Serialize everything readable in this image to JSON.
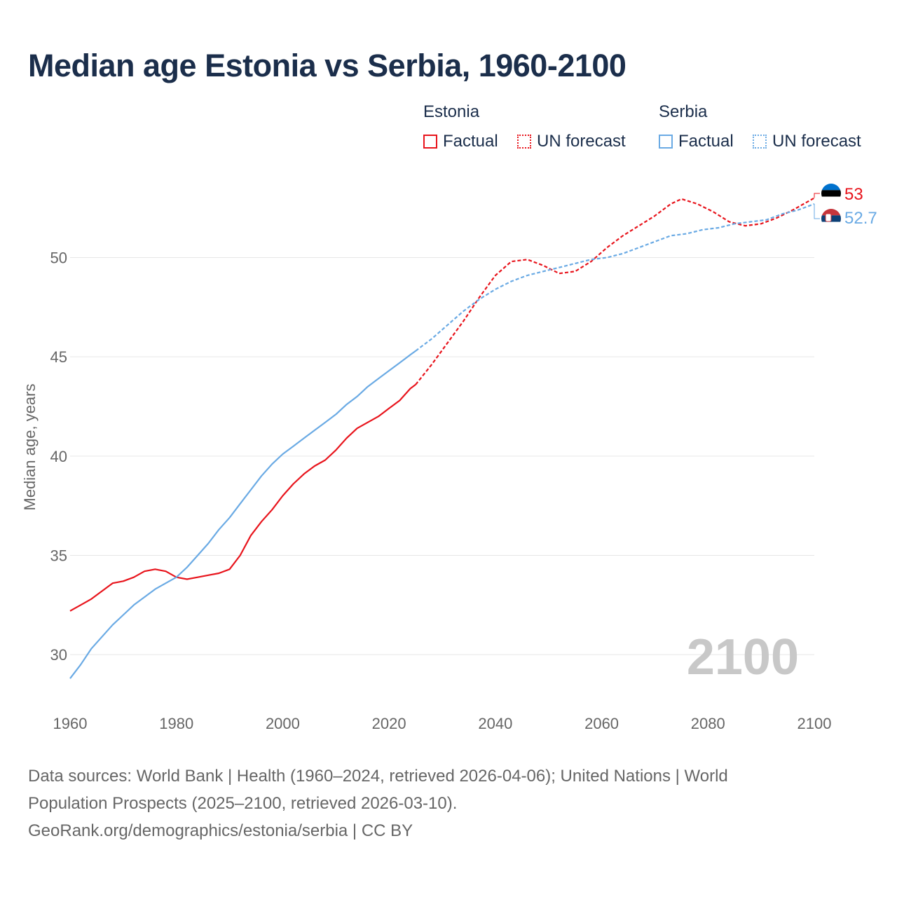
{
  "title": "Median age Estonia vs Serbia, 1960-2100",
  "legend": {
    "groups": [
      {
        "name": "Estonia",
        "factual_label": "Factual",
        "forecast_label": "UN forecast",
        "color": "#e8141c"
      },
      {
        "name": "Serbia",
        "factual_label": "Factual",
        "forecast_label": "UN forecast",
        "color": "#6aaae4"
      }
    ]
  },
  "chart_data": {
    "type": "line",
    "title": "Median age Estonia vs Serbia, 1960-2100",
    "xlabel": "",
    "ylabel": "Median age, years",
    "xlim": [
      1960,
      2100
    ],
    "ylim": [
      27.5,
      54.5
    ],
    "x_ticks": [
      1960,
      1980,
      2000,
      2020,
      2040,
      2060,
      2080,
      2100
    ],
    "y_ticks": [
      30,
      35,
      40,
      45,
      50
    ],
    "year_watermark": "2100",
    "forecast_start": 2025,
    "series": [
      {
        "name": "Estonia",
        "color": "#e8141c",
        "end_label": "53",
        "points": [
          [
            1960,
            32.2
          ],
          [
            1962,
            32.5
          ],
          [
            1964,
            32.8
          ],
          [
            1966,
            33.2
          ],
          [
            1968,
            33.6
          ],
          [
            1970,
            33.7
          ],
          [
            1972,
            33.9
          ],
          [
            1974,
            34.2
          ],
          [
            1976,
            34.3
          ],
          [
            1978,
            34.2
          ],
          [
            1980,
            33.9
          ],
          [
            1982,
            33.8
          ],
          [
            1984,
            33.9
          ],
          [
            1986,
            34.0
          ],
          [
            1988,
            34.1
          ],
          [
            1990,
            34.3
          ],
          [
            1992,
            35.0
          ],
          [
            1994,
            36.0
          ],
          [
            1996,
            36.7
          ],
          [
            1998,
            37.3
          ],
          [
            2000,
            38.0
          ],
          [
            2002,
            38.6
          ],
          [
            2004,
            39.1
          ],
          [
            2006,
            39.5
          ],
          [
            2008,
            39.8
          ],
          [
            2010,
            40.3
          ],
          [
            2012,
            40.9
          ],
          [
            2014,
            41.4
          ],
          [
            2016,
            41.7
          ],
          [
            2018,
            42.0
          ],
          [
            2020,
            42.4
          ],
          [
            2022,
            42.8
          ],
          [
            2024,
            43.4
          ],
          [
            2025,
            43.6
          ],
          [
            2028,
            44.6
          ],
          [
            2031,
            45.7
          ],
          [
            2034,
            46.8
          ],
          [
            2037,
            48.0
          ],
          [
            2040,
            49.1
          ],
          [
            2043,
            49.8
          ],
          [
            2046,
            49.9
          ],
          [
            2049,
            49.6
          ],
          [
            2052,
            49.2
          ],
          [
            2055,
            49.3
          ],
          [
            2058,
            49.8
          ],
          [
            2061,
            50.5
          ],
          [
            2064,
            51.1
          ],
          [
            2067,
            51.6
          ],
          [
            2070,
            52.1
          ],
          [
            2073,
            52.7
          ],
          [
            2075,
            52.95
          ],
          [
            2078,
            52.7
          ],
          [
            2081,
            52.3
          ],
          [
            2084,
            51.8
          ],
          [
            2087,
            51.6
          ],
          [
            2090,
            51.7
          ],
          [
            2093,
            52.0
          ],
          [
            2096,
            52.4
          ],
          [
            2100,
            53.0
          ]
        ]
      },
      {
        "name": "Serbia",
        "color": "#6aaae4",
        "end_label": "52.7",
        "points": [
          [
            1960,
            28.8
          ],
          [
            1962,
            29.5
          ],
          [
            1964,
            30.3
          ],
          [
            1966,
            30.9
          ],
          [
            1968,
            31.5
          ],
          [
            1970,
            32.0
          ],
          [
            1972,
            32.5
          ],
          [
            1974,
            32.9
          ],
          [
            1976,
            33.3
          ],
          [
            1978,
            33.6
          ],
          [
            1980,
            33.9
          ],
          [
            1982,
            34.4
          ],
          [
            1984,
            35.0
          ],
          [
            1986,
            35.6
          ],
          [
            1988,
            36.3
          ],
          [
            1990,
            36.9
          ],
          [
            1992,
            37.6
          ],
          [
            1994,
            38.3
          ],
          [
            1996,
            39.0
          ],
          [
            1998,
            39.6
          ],
          [
            2000,
            40.1
          ],
          [
            2002,
            40.5
          ],
          [
            2004,
            40.9
          ],
          [
            2006,
            41.3
          ],
          [
            2008,
            41.7
          ],
          [
            2010,
            42.1
          ],
          [
            2012,
            42.6
          ],
          [
            2014,
            43.0
          ],
          [
            2016,
            43.5
          ],
          [
            2018,
            43.9
          ],
          [
            2020,
            44.3
          ],
          [
            2022,
            44.7
          ],
          [
            2024,
            45.1
          ],
          [
            2025,
            45.3
          ],
          [
            2028,
            45.9
          ],
          [
            2031,
            46.6
          ],
          [
            2034,
            47.3
          ],
          [
            2037,
            47.9
          ],
          [
            2040,
            48.4
          ],
          [
            2043,
            48.8
          ],
          [
            2046,
            49.1
          ],
          [
            2049,
            49.3
          ],
          [
            2052,
            49.5
          ],
          [
            2055,
            49.7
          ],
          [
            2058,
            49.9
          ],
          [
            2061,
            50.0
          ],
          [
            2064,
            50.2
          ],
          [
            2067,
            50.5
          ],
          [
            2070,
            50.8
          ],
          [
            2073,
            51.1
          ],
          [
            2076,
            51.2
          ],
          [
            2079,
            51.4
          ],
          [
            2082,
            51.5
          ],
          [
            2085,
            51.7
          ],
          [
            2088,
            51.8
          ],
          [
            2091,
            51.9
          ],
          [
            2094,
            52.2
          ],
          [
            2097,
            52.4
          ],
          [
            2100,
            52.7
          ]
        ]
      }
    ]
  },
  "footer": {
    "line1": "Data sources: World Bank | Health (1960–2024, retrieved 2026-04-06); United Nations | World",
    "line2": "Population Prospects (2025–2100, retrieved 2026-03-10).",
    "line3": "GeoRank.org/demographics/estonia/serbia | CC BY"
  }
}
